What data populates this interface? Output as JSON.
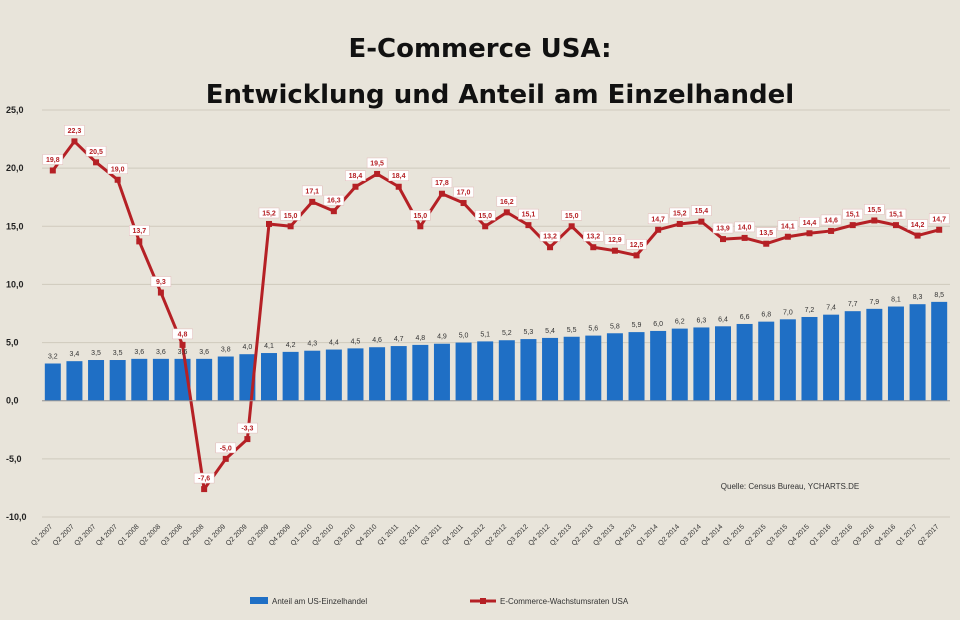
{
  "chart_data": {
    "type": "bar+line",
    "title_line1": "E-Commerce USA:",
    "title_line2": "Entwicklung und Anteil am Einzelhandel",
    "ylim": [
      -10,
      25
    ],
    "yticks": [
      "25,0",
      "20,0",
      "15,0",
      "10,0",
      "5,0",
      "0,0",
      "-5,0",
      "-10,0"
    ],
    "yticks_values": [
      25,
      20,
      15,
      10,
      5,
      0,
      -5,
      -10
    ],
    "grid": true,
    "categories": [
      "Q1 2007",
      "Q2 2007",
      "Q3 2007",
      "Q4 2007",
      "Q1 2008",
      "Q2 2008",
      "Q3 2008",
      "Q4 2008",
      "Q1 2009",
      "Q2 2009",
      "Q3 2009",
      "Q4 2009",
      "Q1 2010",
      "Q2 2010",
      "Q3 2010",
      "Q4 2010",
      "Q1 2011",
      "Q2 2011",
      "Q3 2011",
      "Q4 2011",
      "Q1 2012",
      "Q2 2012",
      "Q3 2012",
      "Q4 2012",
      "Q1 2013",
      "Q2 2013",
      "Q3 2013",
      "Q4 2013",
      "Q1 2014",
      "Q2 2014",
      "Q3 2014",
      "Q4 2014",
      "Q1 2015",
      "Q2 2015",
      "Q3 2015",
      "Q4 2015",
      "Q1 2016",
      "Q2 2016",
      "Q3 2016",
      "Q4 2016",
      "Q1 2017",
      "Q2 2017"
    ],
    "series": [
      {
        "name": "Anteil am US-Einzelhandel",
        "type": "bar",
        "color": "#1f6fc5",
        "values": [
          3.2,
          3.4,
          3.5,
          3.5,
          3.6,
          3.6,
          3.6,
          3.6,
          3.8,
          4.0,
          4.1,
          4.2,
          4.3,
          4.4,
          4.5,
          4.6,
          4.7,
          4.8,
          4.9,
          5.0,
          5.1,
          5.2,
          5.3,
          5.4,
          5.5,
          5.6,
          5.8,
          5.9,
          6.0,
          6.2,
          6.3,
          6.4,
          6.6,
          6.8,
          7.0,
          7.2,
          7.4,
          7.7,
          7.9,
          8.1,
          8.3,
          8.5
        ],
        "labels": [
          "3,2",
          "3,4",
          "3,5",
          "3,5",
          "3,6",
          "3,6",
          "3,6",
          "3,6",
          "3,8",
          "4,0",
          "4,1",
          "4,2",
          "4,3",
          "4,4",
          "4,5",
          "4,6",
          "4,7",
          "4,8",
          "4,9",
          "5,0",
          "5,1",
          "5,2",
          "5,3",
          "5,4",
          "5,5",
          "5,6",
          "5,8",
          "5,9",
          "6,0",
          "6,2",
          "6,3",
          "6,4",
          "6,6",
          "6,8",
          "7,0",
          "7,2",
          "7,4",
          "7,7",
          "7,9",
          "8,1",
          "8,3",
          "8,5"
        ]
      },
      {
        "name": "E-Commerce-Wachstumsraten USA",
        "type": "line",
        "color": "#b52025",
        "values": [
          19.8,
          22.3,
          20.5,
          19.0,
          13.7,
          9.3,
          4.8,
          -7.6,
          -5.0,
          -3.3,
          15.2,
          15.0,
          17.1,
          16.3,
          18.4,
          19.5,
          18.4,
          15.0,
          17.8,
          17.0,
          15.0,
          16.2,
          15.1,
          13.2,
          15.0,
          13.2,
          12.9,
          12.5,
          14.7,
          15.2,
          15.4,
          13.9,
          14.0,
          13.5,
          14.1,
          14.4,
          14.6,
          15.1,
          15.5,
          15.1,
          14.2,
          14.7
        ],
        "labels": [
          "19,8",
          "22,3",
          "20,5",
          "19,0",
          "13,7",
          "9,3",
          "4,8",
          "-7,6",
          "-5,0",
          "-3,3",
          "15,2",
          "15,0",
          "17,1",
          "16,3",
          "18,4",
          "19,5",
          "18,4",
          "15,0",
          "17,8",
          "17,0",
          "15,0",
          "16,2",
          "15,1",
          "13,2",
          "15,0",
          "13,2",
          "12,9",
          "12,5",
          "14,7",
          "15,2",
          "15,4",
          "13,9",
          "14,0",
          "13,5",
          "14,1",
          "14,4",
          "14,6",
          "15,1",
          "15,5",
          "15,1",
          "14,2",
          "14,7"
        ]
      }
    ],
    "legend_position": "bottom",
    "annotation": "Quelle: Census Bureau, YCHARTS.DE"
  }
}
